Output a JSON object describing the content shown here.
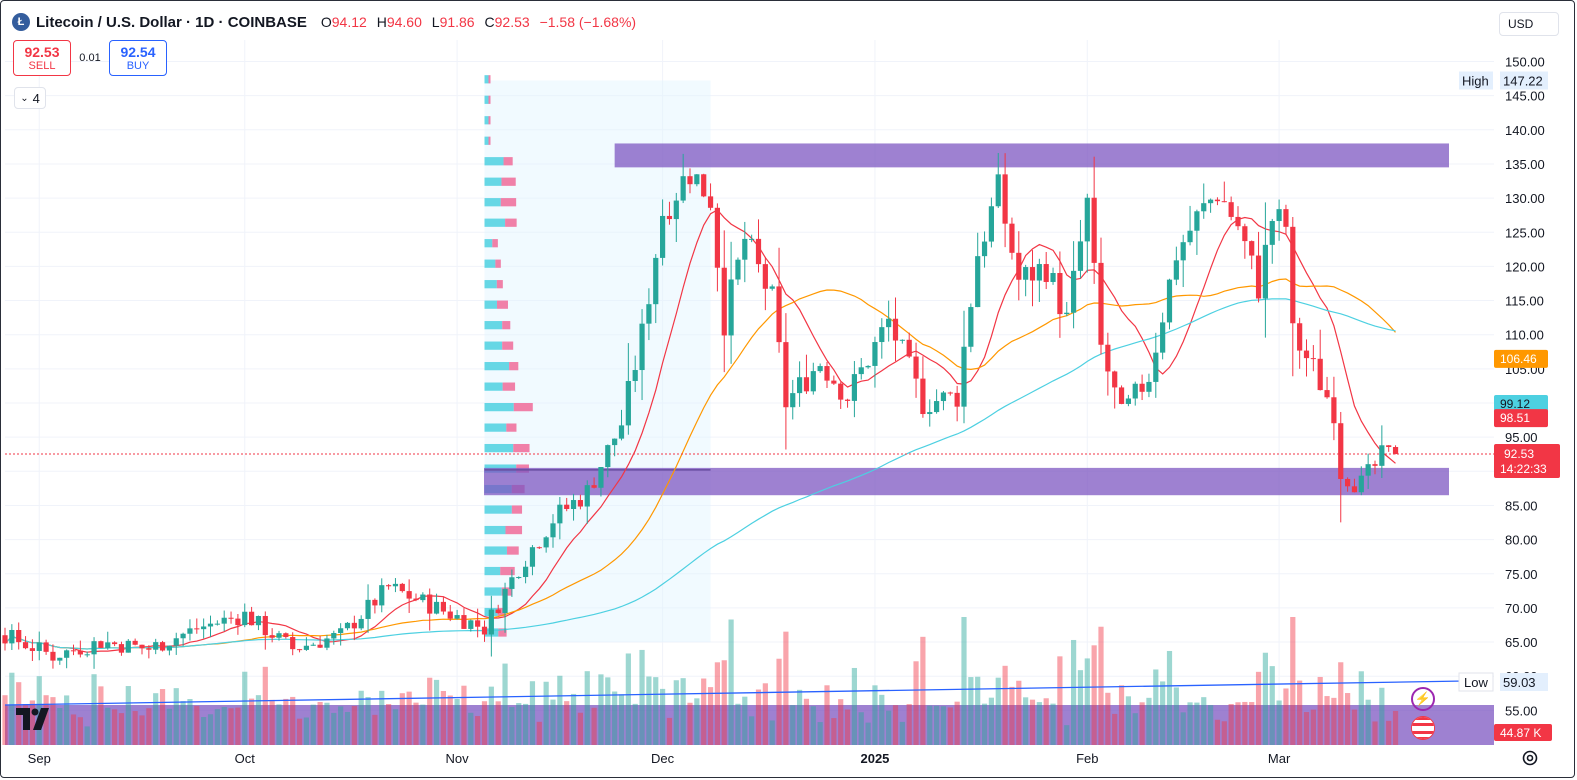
{
  "header": {
    "logo": "Ł",
    "title": "Litecoin / U.S. Dollar · 1D · COINBASE",
    "o_label": "O",
    "o_value": "94.12",
    "h_label": "H",
    "h_value": "94.60",
    "l_label": "L",
    "l_value": "91.86",
    "c_label": "C",
    "c_value": "92.53",
    "change": "−1.58 (−1.68%)"
  },
  "trade": {
    "sell_price": "92.53",
    "sell_label": "SELL",
    "spread": "0.01",
    "buy_price": "92.54",
    "buy_label": "BUY"
  },
  "indicators_toggle": {
    "icon": "chevron-down-icon",
    "count": "4"
  },
  "currency": "USD",
  "price_axis": {
    "ticks": [
      "150.00",
      "145.00",
      "140.00",
      "135.00",
      "130.00",
      "125.00",
      "120.00",
      "115.00",
      "110.00",
      "105.00",
      "100.00",
      "95.00",
      "90.00",
      "85.00",
      "80.00",
      "75.00",
      "70.00",
      "65.00",
      "60.00",
      "55.00"
    ],
    "high_label": "High",
    "high_value": "147.22",
    "low_label": "Low",
    "low_value": "59.03",
    "badge_ma_orange": "106.46",
    "badge_ma_blue": "99.12",
    "badge_ma_red": "98.51",
    "badge_price": "92.53",
    "badge_countdown": "14:22:33",
    "badge_volume": "44.87 K"
  },
  "time_axis": {
    "ticks": [
      "Sep",
      "Oct",
      "Nov",
      "Dec",
      "2025",
      "Feb",
      "Mar"
    ]
  },
  "colors": {
    "up": "#26a69a",
    "down": "#f23645",
    "zone": "#7e57c2",
    "ma_fast": "#f23645",
    "ma_mid": "#ff9800",
    "ma_slow": "#4dd0e1",
    "trend": "#2962ff"
  },
  "chart_data": {
    "type": "candlestick",
    "title": "Litecoin / U.S. Dollar · 1D · COINBASE",
    "ylim": [
      55,
      152
    ],
    "y_scale": "linear",
    "grid": true,
    "x_ticks": [
      "Sep",
      "Oct",
      "Nov",
      "Dec",
      "2025",
      "Feb",
      "Mar"
    ],
    "close_path": [
      [
        "Aug 27",
        66
      ],
      [
        "Sep 3",
        63
      ],
      [
        "Sep 10",
        65
      ],
      [
        "Sep 17",
        64
      ],
      [
        "Sep 24",
        67
      ],
      [
        "Oct 1",
        69
      ],
      [
        "Oct 8",
        64
      ],
      [
        "Oct 15",
        66
      ],
      [
        "Oct 22",
        73
      ],
      [
        "Oct 29",
        70
      ],
      [
        "Nov 5",
        67
      ],
      [
        "Nov 10",
        76
      ],
      [
        "Nov 15",
        83
      ],
      [
        "Nov 20",
        87
      ],
      [
        "Nov 25",
        97
      ],
      [
        "Nov 28",
        110
      ],
      [
        "Dec 1",
        128
      ],
      [
        "Dec 5",
        134
      ],
      [
        "Dec 8",
        130
      ],
      [
        "Dec 10",
        112
      ],
      [
        "Dec 13",
        124
      ],
      [
        "Dec 17",
        115
      ],
      [
        "Dec 19",
        100
      ],
      [
        "Dec 24",
        106
      ],
      [
        "Dec 28",
        101
      ],
      [
        "Jan 3",
        112
      ],
      [
        "Jan 8",
        100
      ],
      [
        "Jan 13",
        101
      ],
      [
        "Jan 16",
        122
      ],
      [
        "Jan 19",
        131
      ],
      [
        "Jan 22",
        118
      ],
      [
        "Jan 26",
        120
      ],
      [
        "Jan 29",
        112
      ],
      [
        "Feb 1",
        129
      ],
      [
        "Feb 3",
        108
      ],
      [
        "Feb 6",
        98
      ],
      [
        "Feb 10",
        104
      ],
      [
        "Feb 14",
        122
      ],
      [
        "Feb 17",
        127
      ],
      [
        "Feb 20",
        131
      ],
      [
        "Feb 23",
        126
      ],
      [
        "Feb 26",
        117
      ],
      [
        "Feb 28",
        127
      ],
      [
        "Mar 2",
        126
      ],
      [
        "Mar 3",
        110
      ],
      [
        "Mar 6",
        105
      ],
      [
        "Mar 9",
        99
      ],
      [
        "Mar 10",
        90
      ],
      [
        "Mar 13",
        88
      ],
      [
        "Mar 16",
        92
      ],
      [
        "Mar 18",
        92.53
      ]
    ],
    "moving_averages": [
      {
        "color": "red",
        "last_value": 98.51
      },
      {
        "color": "orange",
        "last_value": 106.46
      },
      {
        "color": "cyan",
        "last_value": 99.12
      }
    ],
    "zones": [
      {
        "from": 134.5,
        "to": 138
      },
      {
        "from": 86.5,
        "to": 90.5
      }
    ],
    "period_high": 147.22,
    "period_low": 59.03,
    "last_price": 92.53,
    "volume_last": "44.87 K"
  }
}
